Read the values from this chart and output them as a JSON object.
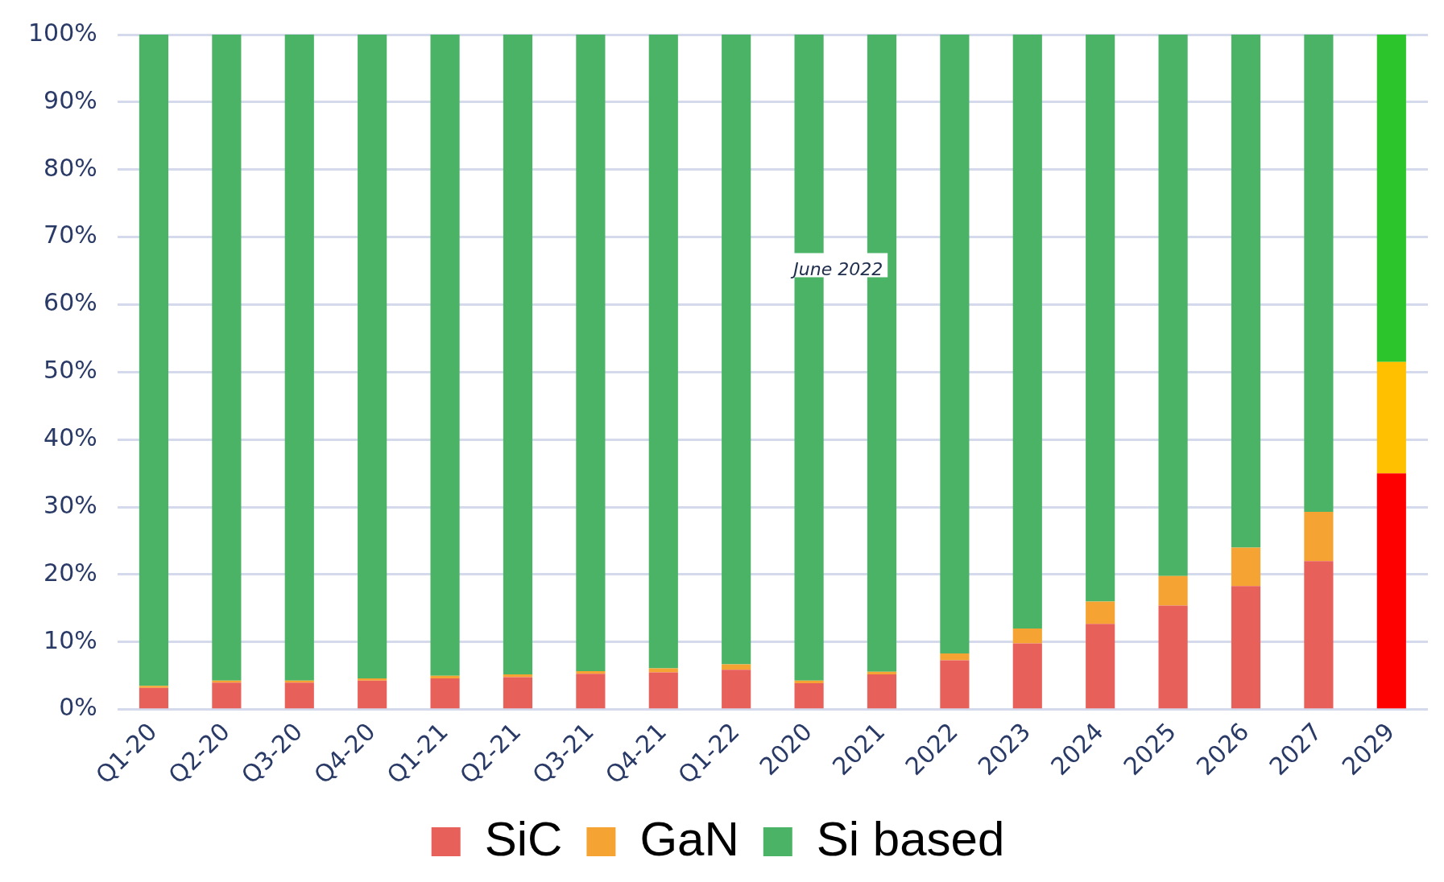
{
  "chart_data": {
    "type": "bar",
    "stacked": true,
    "categories": [
      "Q1-20",
      "Q2-20",
      "Q3-20",
      "Q4-20",
      "Q1-21",
      "Q2-21",
      "Q3-21",
      "Q4-21",
      "Q1-22",
      "2020",
      "2021",
      "2022",
      "2023",
      "2024",
      "2025",
      "2026",
      "2027",
      "2029"
    ],
    "series": [
      {
        "name": "SiC",
        "color": "#e8605a",
        "colors": [
          "#e8605a",
          "#e8605a",
          "#e8605a",
          "#e8605a",
          "#e8605a",
          "#e8605a",
          "#e8605a",
          "#e8605a",
          "#e8605a",
          "#e8605a",
          "#e8605a",
          "#e8605a",
          "#e8605a",
          "#e8605a",
          "#e8605a",
          "#e8605a",
          "#e8605a",
          "#ff0000"
        ],
        "values": [
          3.2,
          4.0,
          4.0,
          4.3,
          4.6,
          4.8,
          5.3,
          5.5,
          5.9,
          3.9,
          5.2,
          7.3,
          9.8,
          12.7,
          15.4,
          18.3,
          22.0,
          35.0
        ]
      },
      {
        "name": "GaN",
        "color": "#f5a433",
        "colors": [
          "#f5a433",
          "#f5a433",
          "#f5a433",
          "#f5a433",
          "#f5a433",
          "#f5a433",
          "#f5a433",
          "#f5a433",
          "#f5a433",
          "#f5a433",
          "#f5a433",
          "#f5a433",
          "#f5a433",
          "#f5a433",
          "#f5a433",
          "#f5a433",
          "#f5a433",
          "#ffc000"
        ],
        "values": [
          0.3,
          0.3,
          0.3,
          0.3,
          0.4,
          0.4,
          0.4,
          0.6,
          0.8,
          0.4,
          0.4,
          1.0,
          2.2,
          3.3,
          4.4,
          5.7,
          7.3,
          16.5
        ]
      },
      {
        "name": "Si based",
        "color": "#4bb366",
        "colors": [
          "#4bb366",
          "#4bb366",
          "#4bb366",
          "#4bb366",
          "#4bb366",
          "#4bb366",
          "#4bb366",
          "#4bb366",
          "#4bb366",
          "#4bb366",
          "#4bb366",
          "#4bb366",
          "#4bb366",
          "#4bb366",
          "#4bb366",
          "#4bb366",
          "#4bb366",
          "#2cc52c"
        ],
        "values": [
          96.5,
          95.7,
          95.7,
          95.4,
          95.0,
          94.8,
          94.3,
          93.9,
          93.3,
          95.7,
          94.4,
          91.7,
          88.0,
          84.0,
          80.2,
          76.0,
          70.7,
          48.5
        ]
      }
    ],
    "ylim": [
      0,
      100
    ],
    "yticks": [
      {
        "value": 0,
        "label": "0%"
      },
      {
        "value": 10,
        "label": "10%"
      },
      {
        "value": 20,
        "label": "20%"
      },
      {
        "value": 30,
        "label": "30%"
      },
      {
        "value": 40,
        "label": "40%"
      },
      {
        "value": 50,
        "label": "50%"
      },
      {
        "value": 60,
        "label": "60%"
      },
      {
        "value": 70,
        "label": "70%"
      },
      {
        "value": 80,
        "label": "80%"
      },
      {
        "value": 90,
        "label": "90%"
      },
      {
        "value": 100,
        "label": "100%"
      }
    ],
    "grid": "y",
    "legend": "bottom",
    "annotations": [
      "June 2022"
    ]
  }
}
